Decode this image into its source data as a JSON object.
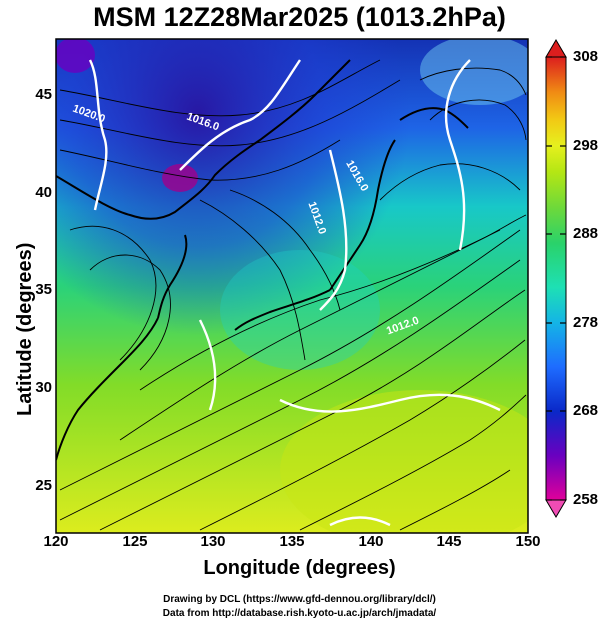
{
  "title": "MSM 12Z28Mar2025 (1013.2hPa)",
  "chart_data": {
    "type": "map",
    "title": "MSM 12Z28Mar2025 (1013.2hPa)",
    "xlabel": "Longitude (degrees)",
    "ylabel": "Latitude  (degrees)",
    "xlim": [
      120,
      150
    ],
    "ylim": [
      22.4,
      47.6
    ],
    "x_ticks": [
      "120",
      "125",
      "130",
      "135",
      "140",
      "145",
      "150"
    ],
    "y_ticks": [
      "25",
      "30",
      "35",
      "40",
      "45"
    ],
    "colorbar": {
      "ticks": [
        "258",
        "268",
        "278",
        "288",
        "298",
        "308"
      ],
      "range": [
        258,
        308
      ],
      "colors": [
        "#e0009a",
        "#6a00c0",
        "#0a28c8",
        "#1e6cff",
        "#14b4e6",
        "#1ee0b4",
        "#2ad26a",
        "#6ed93a",
        "#b4e614",
        "#e6f01e",
        "#f2c814",
        "#f08c14",
        "#e64614",
        "#dc1e1e"
      ]
    },
    "contour_labels": [
      "1020.0",
      "1016.0",
      "1016.0",
      "1012.0",
      "1012.0"
    ],
    "grid": true
  },
  "credits": {
    "line1": "Drawing by DCL (https://www.gfd-dennou.org/library/dcl/)",
    "line2": "Data from http://database.rish.kyoto-u.ac.jp/arch/jmadata/"
  }
}
